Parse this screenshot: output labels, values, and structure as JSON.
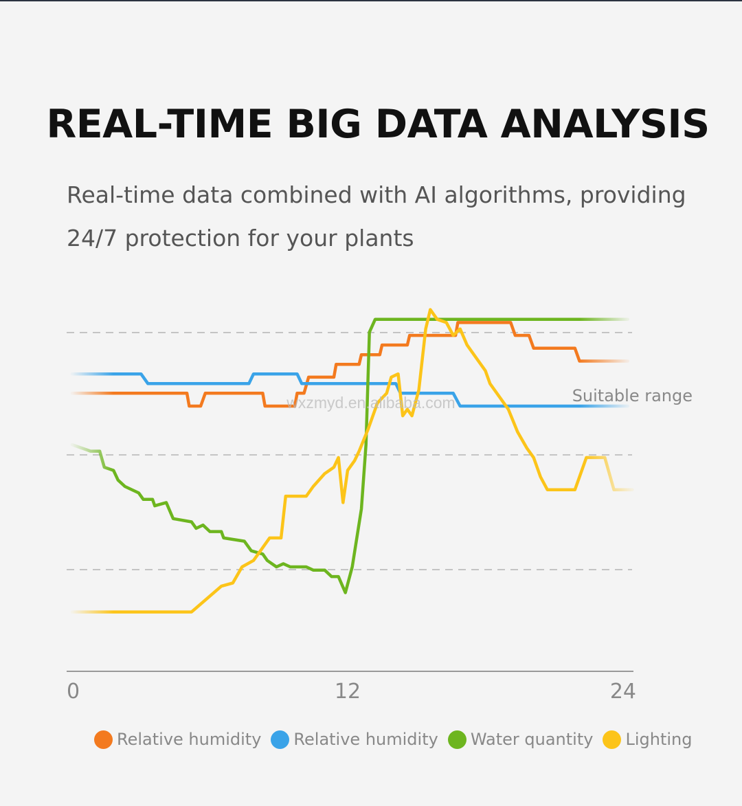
{
  "page": {
    "title": "REAL-TIME BIG DATA ANALYSIS",
    "subtitle_line1": "Real-time data combined with AI algorithms, providing",
    "subtitle_line2": "24/7 protection for your plants",
    "watermark": "wxzmyd.en.alibaba.com"
  },
  "chart_data": {
    "type": "line",
    "title": "",
    "xlabel": "",
    "ylabel": "",
    "xlim": [
      0,
      24
    ],
    "ylim": [
      0,
      100
    ],
    "x_ticks": [
      "0",
      "12",
      "24"
    ],
    "grid": "dashed horizontal",
    "annotation": "Suitable range",
    "series": [
      {
        "name": "Relative humidity",
        "color": "#f37a1f",
        "fade_start": true,
        "fade_end": true,
        "points": [
          [
            0,
            76
          ],
          [
            5,
            76
          ],
          [
            5.1,
            72
          ],
          [
            5.6,
            72
          ],
          [
            5.8,
            76
          ],
          [
            8.3,
            76
          ],
          [
            8.4,
            72
          ],
          [
            9.7,
            72
          ],
          [
            9.8,
            76
          ],
          [
            10.1,
            76
          ],
          [
            10.3,
            81
          ],
          [
            11.4,
            81
          ],
          [
            11.5,
            85
          ],
          [
            12.5,
            85
          ],
          [
            12.6,
            88
          ],
          [
            13.4,
            88
          ],
          [
            13.5,
            91
          ],
          [
            14.6,
            91
          ],
          [
            14.7,
            94
          ],
          [
            16.7,
            94
          ],
          [
            16.8,
            98
          ],
          [
            19.1,
            98
          ],
          [
            19.3,
            94
          ],
          [
            19.9,
            94
          ],
          [
            20.1,
            90
          ],
          [
            21.9,
            90
          ],
          [
            22.1,
            86
          ],
          [
            24.2,
            86
          ]
        ]
      },
      {
        "name": "Relative humidity",
        "color": "#3aa3e8",
        "fade_start": true,
        "fade_end": true,
        "points": [
          [
            0,
            82
          ],
          [
            3,
            82
          ],
          [
            3.3,
            79
          ],
          [
            7.7,
            79
          ],
          [
            7.9,
            82
          ],
          [
            9.8,
            82
          ],
          [
            10,
            79
          ],
          [
            14.1,
            79
          ],
          [
            14.3,
            76
          ],
          [
            16.6,
            76
          ],
          [
            16.9,
            72
          ],
          [
            24.2,
            72
          ]
        ]
      },
      {
        "name": "Water quantity",
        "color": "#6db51f",
        "fade_start": true,
        "fade_end": true,
        "points": [
          [
            0,
            60
          ],
          [
            0.8,
            58
          ],
          [
            1.2,
            58
          ],
          [
            1.4,
            53
          ],
          [
            1.8,
            52
          ],
          [
            2,
            49
          ],
          [
            2.3,
            47
          ],
          [
            2.9,
            45
          ],
          [
            3.1,
            43
          ],
          [
            3.5,
            43
          ],
          [
            3.6,
            41
          ],
          [
            4.1,
            42
          ],
          [
            4.4,
            37
          ],
          [
            5.2,
            36
          ],
          [
            5.4,
            34
          ],
          [
            5.7,
            35
          ],
          [
            6,
            33
          ],
          [
            6.5,
            33
          ],
          [
            6.6,
            31
          ],
          [
            7.5,
            30
          ],
          [
            7.8,
            27
          ],
          [
            8.3,
            26
          ],
          [
            8.5,
            24
          ],
          [
            8.9,
            22
          ],
          [
            9.2,
            23
          ],
          [
            9.5,
            22
          ],
          [
            10.2,
            22
          ],
          [
            10.5,
            21
          ],
          [
            11,
            21
          ],
          [
            11.3,
            19
          ],
          [
            11.6,
            19
          ],
          [
            11.9,
            14
          ],
          [
            12.2,
            22
          ],
          [
            12.6,
            40
          ],
          [
            12.8,
            60
          ],
          [
            12.95,
            95
          ],
          [
            13.2,
            99
          ],
          [
            16,
            99
          ],
          [
            24.2,
            99
          ]
        ]
      },
      {
        "name": "Lighting",
        "color": "#fcc419",
        "fade_start": true,
        "fade_end": true,
        "points": [
          [
            0,
            8
          ],
          [
            5.2,
            8
          ],
          [
            6.5,
            16
          ],
          [
            7,
            17
          ],
          [
            7.4,
            22
          ],
          [
            7.9,
            24
          ],
          [
            8.4,
            29
          ],
          [
            8.6,
            31
          ],
          [
            9.1,
            31
          ],
          [
            9.3,
            44
          ],
          [
            9.8,
            44
          ],
          [
            10.2,
            44
          ],
          [
            10.5,
            47
          ],
          [
            11,
            51
          ],
          [
            11.4,
            53
          ],
          [
            11.6,
            56
          ],
          [
            11.8,
            42
          ],
          [
            12,
            52
          ],
          [
            12.3,
            55
          ],
          [
            12.5,
            58
          ],
          [
            12.9,
            65
          ],
          [
            13.3,
            73
          ],
          [
            13.7,
            76
          ],
          [
            13.9,
            81
          ],
          [
            14.2,
            82
          ],
          [
            14.4,
            69
          ],
          [
            14.6,
            71
          ],
          [
            14.8,
            69
          ],
          [
            15.1,
            77
          ],
          [
            15.4,
            96
          ],
          [
            15.6,
            102
          ],
          [
            15.9,
            99
          ],
          [
            16.3,
            98
          ],
          [
            16.6,
            94
          ],
          [
            16.9,
            96
          ],
          [
            17.2,
            91
          ],
          [
            17.6,
            87
          ],
          [
            18,
            83
          ],
          [
            18.2,
            79
          ],
          [
            18.5,
            76
          ],
          [
            19,
            71
          ],
          [
            19.4,
            64
          ],
          [
            19.8,
            59
          ],
          [
            20.1,
            56
          ],
          [
            20.4,
            50
          ],
          [
            20.7,
            46
          ],
          [
            21.9,
            46
          ],
          [
            22.4,
            56
          ],
          [
            23.2,
            56
          ],
          [
            23.6,
            46
          ],
          [
            24.4,
            46
          ]
        ]
      }
    ]
  }
}
